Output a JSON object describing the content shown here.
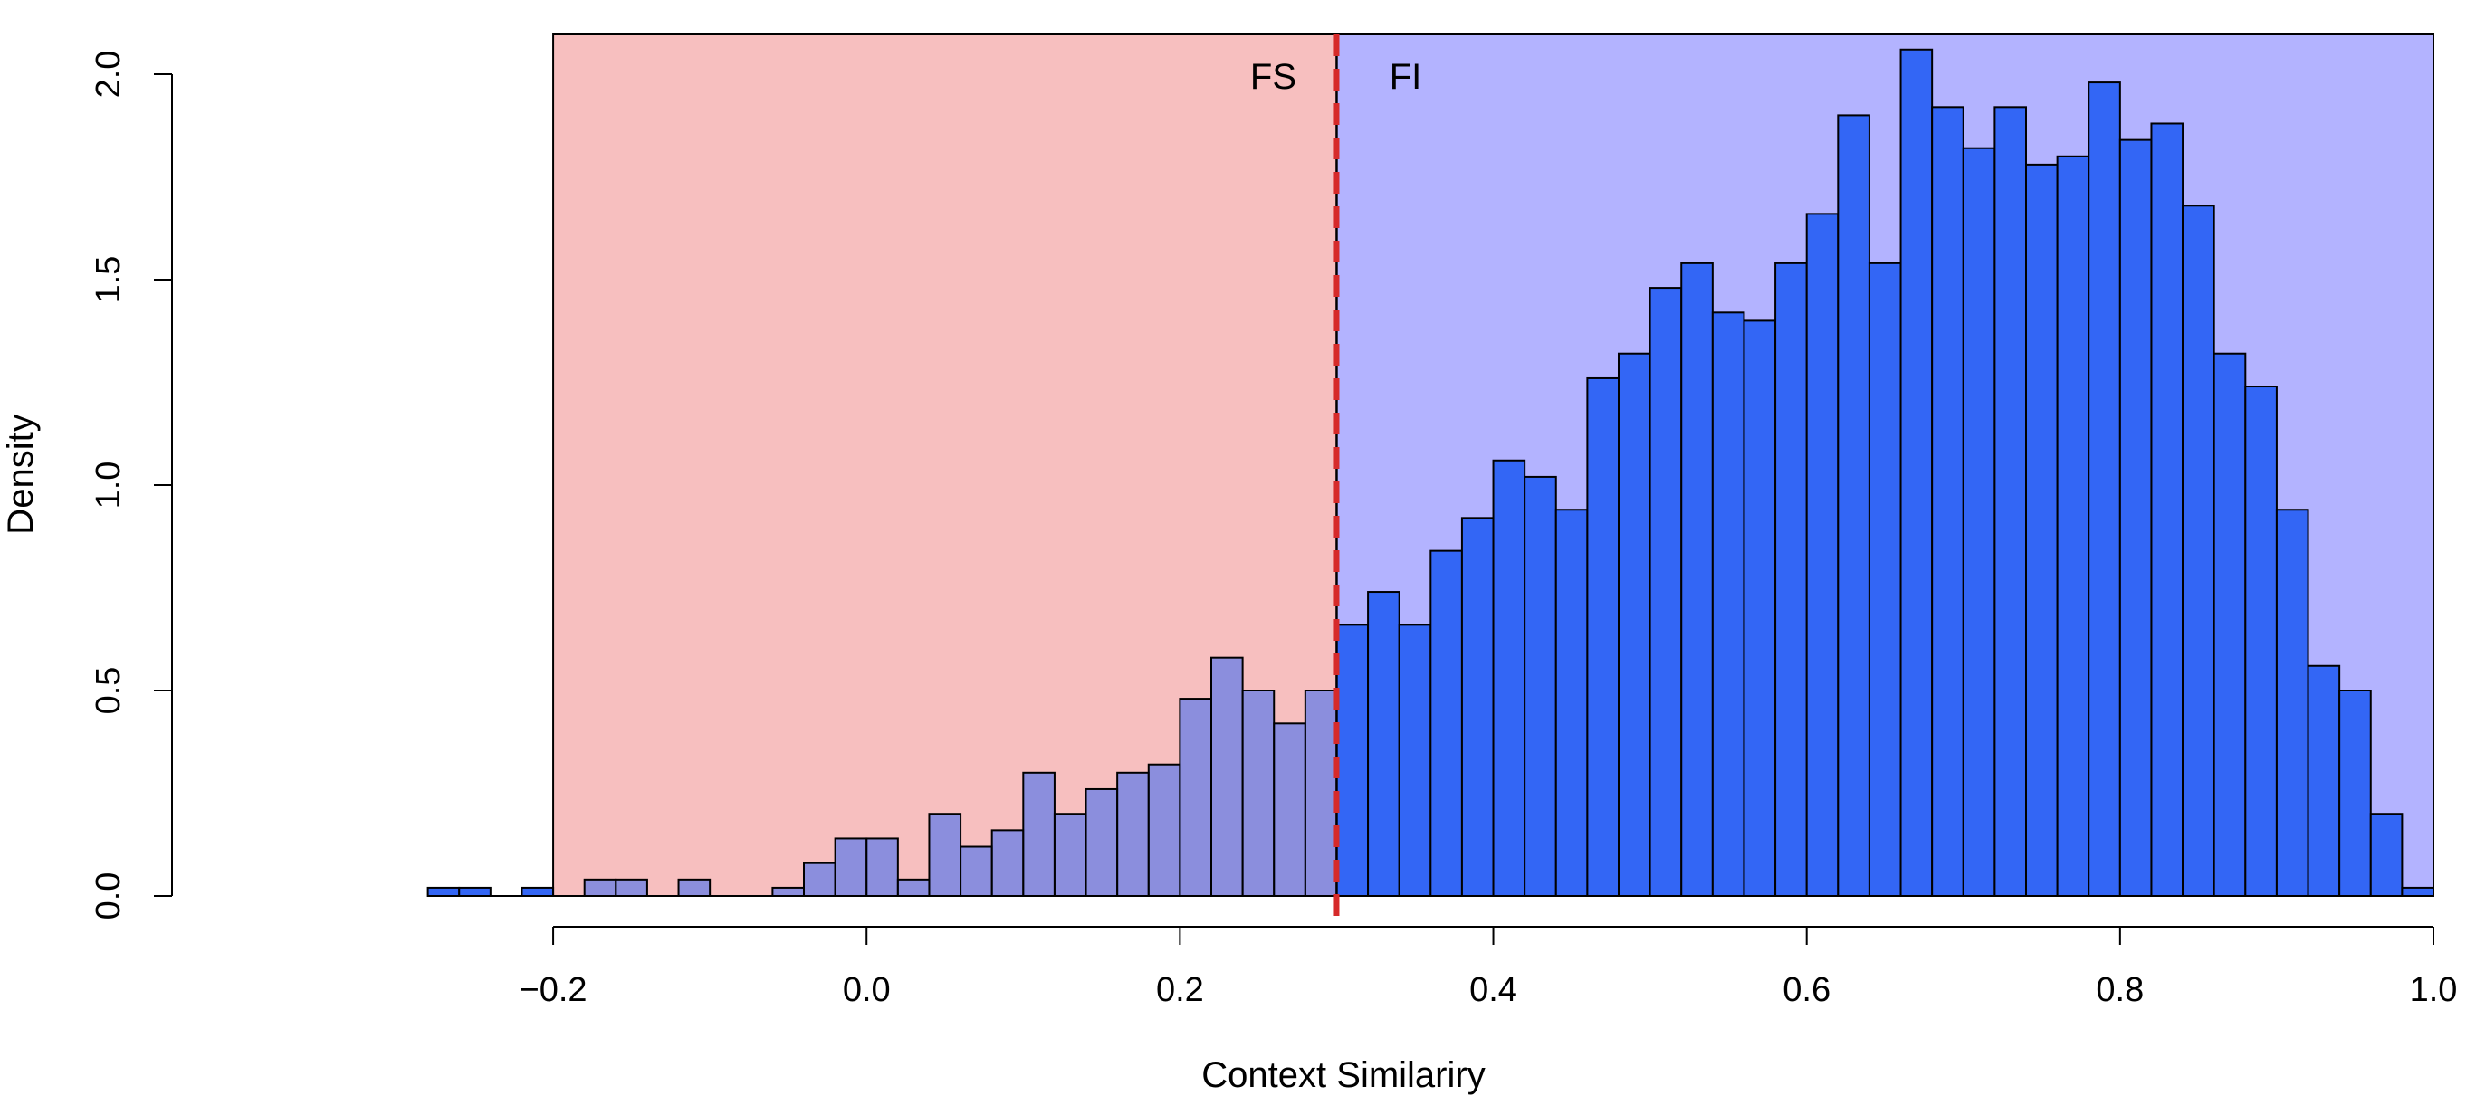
{
  "chart_data": {
    "type": "bar",
    "subtype": "histogram",
    "xlabel": "Context Similariry",
    "ylabel": "Density",
    "xlim": [
      -0.3,
      1.0
    ],
    "ylim": [
      0,
      2.1
    ],
    "x_ticks": [
      -0.2,
      0.0,
      0.2,
      0.4,
      0.6,
      0.8,
      1.0
    ],
    "x_tick_labels": [
      "−0.2",
      "0.0",
      "0.2",
      "0.4",
      "0.6",
      "0.8",
      "1.0"
    ],
    "y_ticks": [
      0,
      0.5,
      1.0,
      1.5,
      2.0
    ],
    "y_tick_labels": [
      "0.0",
      "0.5",
      "1.0",
      "1.5",
      "2.0"
    ],
    "bin_width": 0.02,
    "bin_start": -0.28,
    "values": [
      0.02,
      0.02,
      0,
      0.02,
      0,
      0.04,
      0.04,
      0,
      0.04,
      0,
      0,
      0.02,
      0.08,
      0.14,
      0.14,
      0.04,
      0.2,
      0.12,
      0.16,
      0.3,
      0.2,
      0.26,
      0.3,
      0.32,
      0.48,
      0.58,
      0.5,
      0.42,
      0.5,
      0.66,
      0.74,
      0.66,
      0.84,
      0.92,
      1.06,
      1.02,
      0.94,
      1.26,
      1.32,
      1.48,
      1.54,
      1.42,
      1.4,
      1.54,
      1.66,
      1.9,
      1.54,
      2.06,
      1.92,
      1.82,
      1.92,
      1.78,
      1.8,
      1.98,
      1.84,
      1.88,
      1.68,
      1.32,
      1.24,
      0.94,
      0.56,
      0.5,
      0.2,
      0.02
    ],
    "threshold": 0.3,
    "regions": [
      {
        "label": "FS",
        "from": -0.2,
        "to": 0.3,
        "color": "#f7bfbf"
      },
      {
        "label": "FI",
        "from": 0.3,
        "to": 1.0,
        "color": "#b3b3ff"
      }
    ],
    "bar_color": "#3366f5",
    "threshold_color": "#d62a2a",
    "grid": false,
    "legend": "none"
  }
}
